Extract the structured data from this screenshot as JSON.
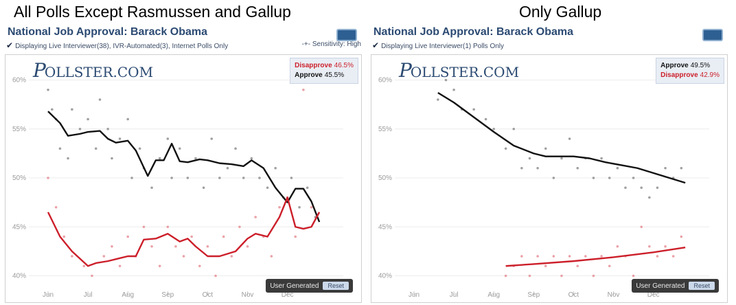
{
  "headings": {
    "left": "All Polls Except Rasmussen and Gallup",
    "right": "Only Gallup"
  },
  "panels": [
    {
      "title": "National Job Approval: Barack Obama",
      "subtitle": "Displaying Live Interviewer(38), IVR-Automated(3), Internet Polls Only",
      "sensitivity": "Sensitivity: High",
      "logo_main": "OLLSTER",
      "logo_suffix": ".COM",
      "legend": [
        {
          "label": "Disapprove",
          "value": "46.5%",
          "color": "#cc1f2a"
        },
        {
          "label": "Approve",
          "value": "45.5%",
          "color": "#111111"
        }
      ],
      "ug_label": "User Generated",
      "reset_label": "Reset"
    },
    {
      "title": "National Job Approval: Barack Obama",
      "subtitle": "Displaying Live Interviewer(1) Polls Only",
      "sensitivity": "",
      "logo_main": "OLLSTER",
      "logo_suffix": ".COM",
      "legend": [
        {
          "label": "Approve",
          "value": "49.5%",
          "color": "#111111"
        },
        {
          "label": "Disapprove",
          "value": "42.9%",
          "color": "#cc1f2a"
        }
      ],
      "ug_label": "User Generated",
      "reset_label": "Reset"
    }
  ],
  "chart_data": [
    {
      "type": "line",
      "title": "National Job Approval: Barack Obama",
      "x_ticks": [
        "Jun",
        "Jul",
        "Aug",
        "Sep",
        "Oct",
        "Nov",
        "Dec"
      ],
      "y_ticks": [
        "40%",
        "45%",
        "50%",
        "55%",
        "60%"
      ],
      "ylim": [
        38,
        62
      ],
      "xlim": [
        0,
        7.4
      ],
      "series": [
        {
          "name": "Approve",
          "color": "#111111",
          "x": [
            0,
            0.3,
            0.5,
            0.8,
            1.0,
            1.3,
            1.5,
            1.7,
            2.0,
            2.2,
            2.5,
            2.7,
            2.9,
            3.1,
            3.3,
            3.5,
            3.8,
            4.0,
            4.3,
            4.6,
            4.9,
            5.1,
            5.4,
            5.7,
            6.0,
            6.2,
            6.4,
            6.6,
            6.8
          ],
          "y": [
            56.8,
            55.6,
            54.3,
            54.5,
            54.7,
            54.8,
            54.0,
            53.6,
            53.8,
            52.8,
            50.2,
            51.8,
            51.8,
            53.5,
            51.7,
            51.6,
            51.9,
            51.8,
            51.5,
            51.4,
            51.2,
            51.8,
            51.0,
            49.0,
            47.5,
            48.9,
            48.9,
            47.6,
            45.5
          ]
        },
        {
          "name": "Disapprove",
          "color": "#cc1f2a",
          "x": [
            0,
            0.3,
            0.6,
            1.0,
            1.2,
            1.5,
            1.8,
            2.0,
            2.2,
            2.4,
            2.7,
            3.0,
            3.3,
            3.5,
            3.7,
            4.0,
            4.3,
            4.7,
            5.0,
            5.2,
            5.5,
            5.8,
            6.0,
            6.2,
            6.4,
            6.6,
            6.8
          ],
          "y": [
            46.5,
            44.0,
            42.5,
            41.0,
            41.3,
            41.5,
            41.8,
            42.0,
            42.0,
            43.7,
            43.8,
            44.3,
            43.5,
            43.8,
            43.0,
            42.0,
            42.0,
            42.5,
            43.8,
            44.3,
            44.0,
            46.0,
            48.0,
            45.0,
            44.8,
            45.0,
            46.5
          ]
        }
      ],
      "scatter": {
        "approve": [
          [
            0,
            59
          ],
          [
            0.1,
            57
          ],
          [
            0.2,
            56
          ],
          [
            0.3,
            53
          ],
          [
            0.5,
            52
          ],
          [
            0.6,
            57
          ],
          [
            0.8,
            55
          ],
          [
            1.0,
            56
          ],
          [
            1.2,
            53
          ],
          [
            1.3,
            58
          ],
          [
            1.5,
            55
          ],
          [
            1.6,
            52
          ],
          [
            1.8,
            54
          ],
          [
            2.0,
            56
          ],
          [
            2.1,
            50
          ],
          [
            2.3,
            53
          ],
          [
            2.4,
            51
          ],
          [
            2.6,
            49
          ],
          [
            2.8,
            52
          ],
          [
            3.0,
            54
          ],
          [
            3.1,
            50
          ],
          [
            3.3,
            53
          ],
          [
            3.5,
            50
          ],
          [
            3.7,
            52
          ],
          [
            3.9,
            49
          ],
          [
            4.1,
            54
          ],
          [
            4.3,
            50
          ],
          [
            4.5,
            51
          ],
          [
            4.7,
            53
          ],
          [
            4.9,
            50
          ],
          [
            5.1,
            52
          ],
          [
            5.3,
            50
          ],
          [
            5.5,
            49
          ],
          [
            5.7,
            51
          ],
          [
            5.9,
            48
          ],
          [
            6.1,
            50
          ],
          [
            6.3,
            47
          ],
          [
            6.5,
            49
          ],
          [
            6.7,
            46
          ]
        ],
        "disapprove": [
          [
            0,
            50
          ],
          [
            0.2,
            47
          ],
          [
            0.4,
            44
          ],
          [
            0.6,
            42
          ],
          [
            0.9,
            41
          ],
          [
            1.1,
            40
          ],
          [
            1.4,
            42
          ],
          [
            1.6,
            43
          ],
          [
            1.8,
            41
          ],
          [
            2.0,
            44
          ],
          [
            2.2,
            42
          ],
          [
            2.4,
            45
          ],
          [
            2.6,
            43
          ],
          [
            2.8,
            41
          ],
          [
            3.0,
            45
          ],
          [
            3.2,
            43
          ],
          [
            3.4,
            42
          ],
          [
            3.6,
            44
          ],
          [
            3.8,
            41
          ],
          [
            4.0,
            43
          ],
          [
            4.2,
            40
          ],
          [
            4.4,
            44
          ],
          [
            4.6,
            42
          ],
          [
            4.8,
            45
          ],
          [
            5.0,
            43
          ],
          [
            5.2,
            46
          ],
          [
            5.4,
            44
          ],
          [
            5.6,
            42
          ],
          [
            5.8,
            47
          ],
          [
            6.0,
            48
          ],
          [
            6.2,
            44
          ],
          [
            6.4,
            59
          ],
          [
            6.6,
            47
          ]
        ]
      }
    },
    {
      "type": "line",
      "title": "National Job Approval: Barack Obama",
      "x_ticks": [
        "Jun",
        "Jul",
        "Aug",
        "Sep",
        "Oct",
        "Nov",
        "Dec"
      ],
      "y_ticks": [
        "40%",
        "45%",
        "50%",
        "55%",
        "60%"
      ],
      "ylim": [
        38,
        62
      ],
      "xlim": [
        0,
        7.4
      ],
      "series": [
        {
          "name": "Approve",
          "color": "#111111",
          "x": [
            0.6,
            1.0,
            1.5,
            2.0,
            2.5,
            3.0,
            3.3,
            3.6,
            4.0,
            4.4,
            4.8,
            5.2,
            5.6,
            6.0,
            6.4,
            6.8
          ],
          "y": [
            58.7,
            57.7,
            56.2,
            54.7,
            53.3,
            52.5,
            52.2,
            52.2,
            52.2,
            52.0,
            51.6,
            51.3,
            51.0,
            50.5,
            50.0,
            49.5
          ]
        },
        {
          "name": "Disapprove",
          "color": "#cc1f2a",
          "x": [
            2.3,
            3.0,
            4.0,
            5.0,
            6.0,
            6.8
          ],
          "y": [
            41.0,
            41.2,
            41.5,
            41.9,
            42.4,
            42.9
          ]
        }
      ],
      "scatter": {
        "approve": [
          [
            0.6,
            58
          ],
          [
            0.8,
            60
          ],
          [
            1.0,
            59
          ],
          [
            1.2,
            57
          ],
          [
            1.5,
            57
          ],
          [
            1.8,
            56
          ],
          [
            2.0,
            55
          ],
          [
            2.3,
            53
          ],
          [
            2.5,
            55
          ],
          [
            2.7,
            51
          ],
          [
            2.9,
            52
          ],
          [
            3.1,
            51
          ],
          [
            3.3,
            53
          ],
          [
            3.5,
            50
          ],
          [
            3.7,
            52
          ],
          [
            3.9,
            54
          ],
          [
            4.1,
            51
          ],
          [
            4.3,
            52
          ],
          [
            4.5,
            50
          ],
          [
            4.7,
            52
          ],
          [
            4.9,
            50
          ],
          [
            5.1,
            51
          ],
          [
            5.3,
            49
          ],
          [
            5.5,
            50
          ],
          [
            5.7,
            49
          ],
          [
            5.9,
            48
          ],
          [
            6.1,
            49
          ],
          [
            6.3,
            51
          ],
          [
            6.5,
            50
          ],
          [
            6.7,
            51
          ]
        ],
        "disapprove": [
          [
            2.3,
            40
          ],
          [
            2.5,
            41
          ],
          [
            2.7,
            42
          ],
          [
            2.9,
            40
          ],
          [
            3.1,
            42
          ],
          [
            3.3,
            41
          ],
          [
            3.5,
            42
          ],
          [
            3.7,
            40
          ],
          [
            3.9,
            42
          ],
          [
            4.1,
            41
          ],
          [
            4.3,
            42
          ],
          [
            4.5,
            40
          ],
          [
            4.7,
            42
          ],
          [
            4.9,
            41
          ],
          [
            5.1,
            43
          ],
          [
            5.3,
            42
          ],
          [
            5.5,
            40
          ],
          [
            5.7,
            45
          ],
          [
            5.9,
            43
          ],
          [
            6.1,
            42
          ],
          [
            6.3,
            43
          ],
          [
            6.5,
            42
          ],
          [
            6.7,
            44
          ]
        ]
      }
    }
  ]
}
